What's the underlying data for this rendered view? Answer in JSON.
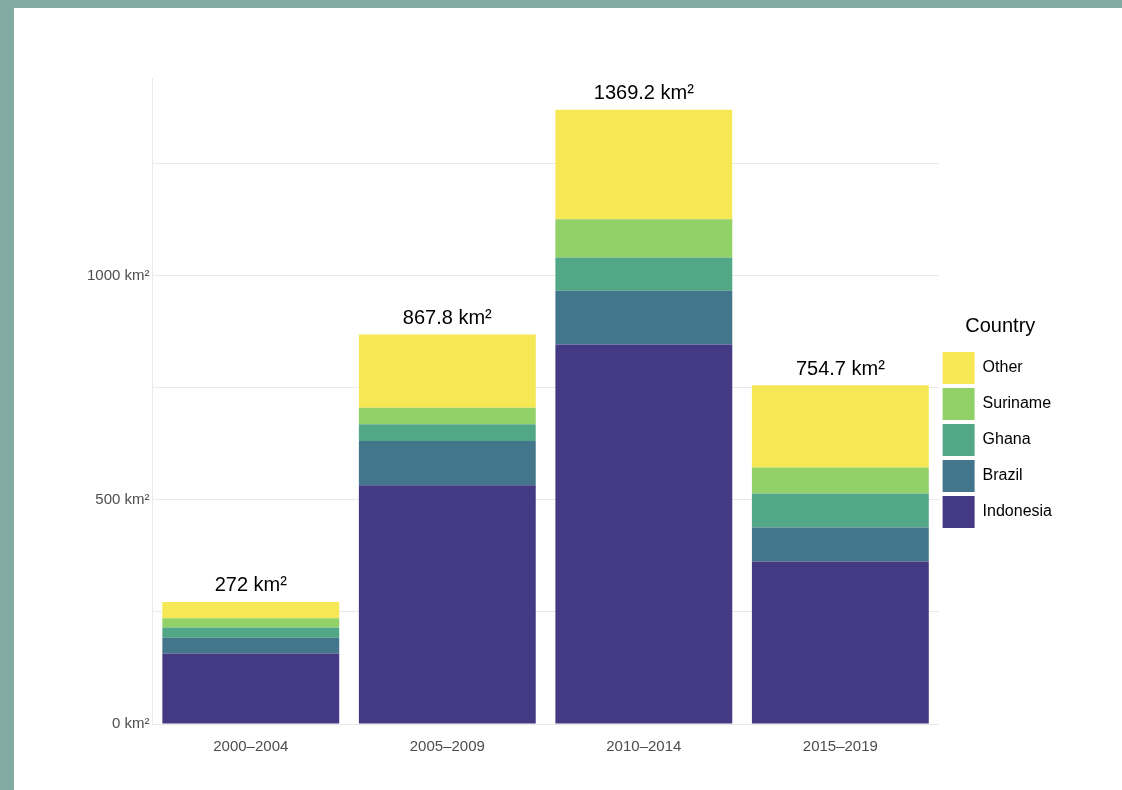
{
  "chart_data": {
    "type": "bar",
    "stacked": true,
    "categories": [
      "2000–2004",
      "2005–2009",
      "2010–2014",
      "2015–2019"
    ],
    "series": [
      {
        "name": "Indonesia",
        "color": "#443983",
        "values": [
          157,
          532,
          846,
          362
        ]
      },
      {
        "name": "Brazil",
        "color": "#43768a",
        "values": [
          35,
          99,
          120,
          76
        ]
      },
      {
        "name": "Ghana",
        "color": "#52a886",
        "values": [
          23,
          37,
          74,
          76
        ]
      },
      {
        "name": "Suriname",
        "color": "#92d068",
        "values": [
          21,
          37,
          85,
          58
        ]
      },
      {
        "name": "Other",
        "color": "#f6e755",
        "values": [
          36,
          163,
          244,
          183
        ]
      }
    ],
    "totals": [
      "272 km²",
      "867.8 km²",
      "1369.2 km²",
      "754.7 km²"
    ],
    "yticks": [
      {
        "value": 0,
        "label": "0 km²"
      },
      {
        "value": 250,
        "label": null
      },
      {
        "value": 500,
        "label": "500 km²"
      },
      {
        "value": 750,
        "label": null
      },
      {
        "value": 1000,
        "label": "1000 km²"
      },
      {
        "value": 1250,
        "label": null
      }
    ],
    "ylim": [
      0,
      1440
    ],
    "grid": "y",
    "legend": "right",
    "legend_title": "Country"
  }
}
